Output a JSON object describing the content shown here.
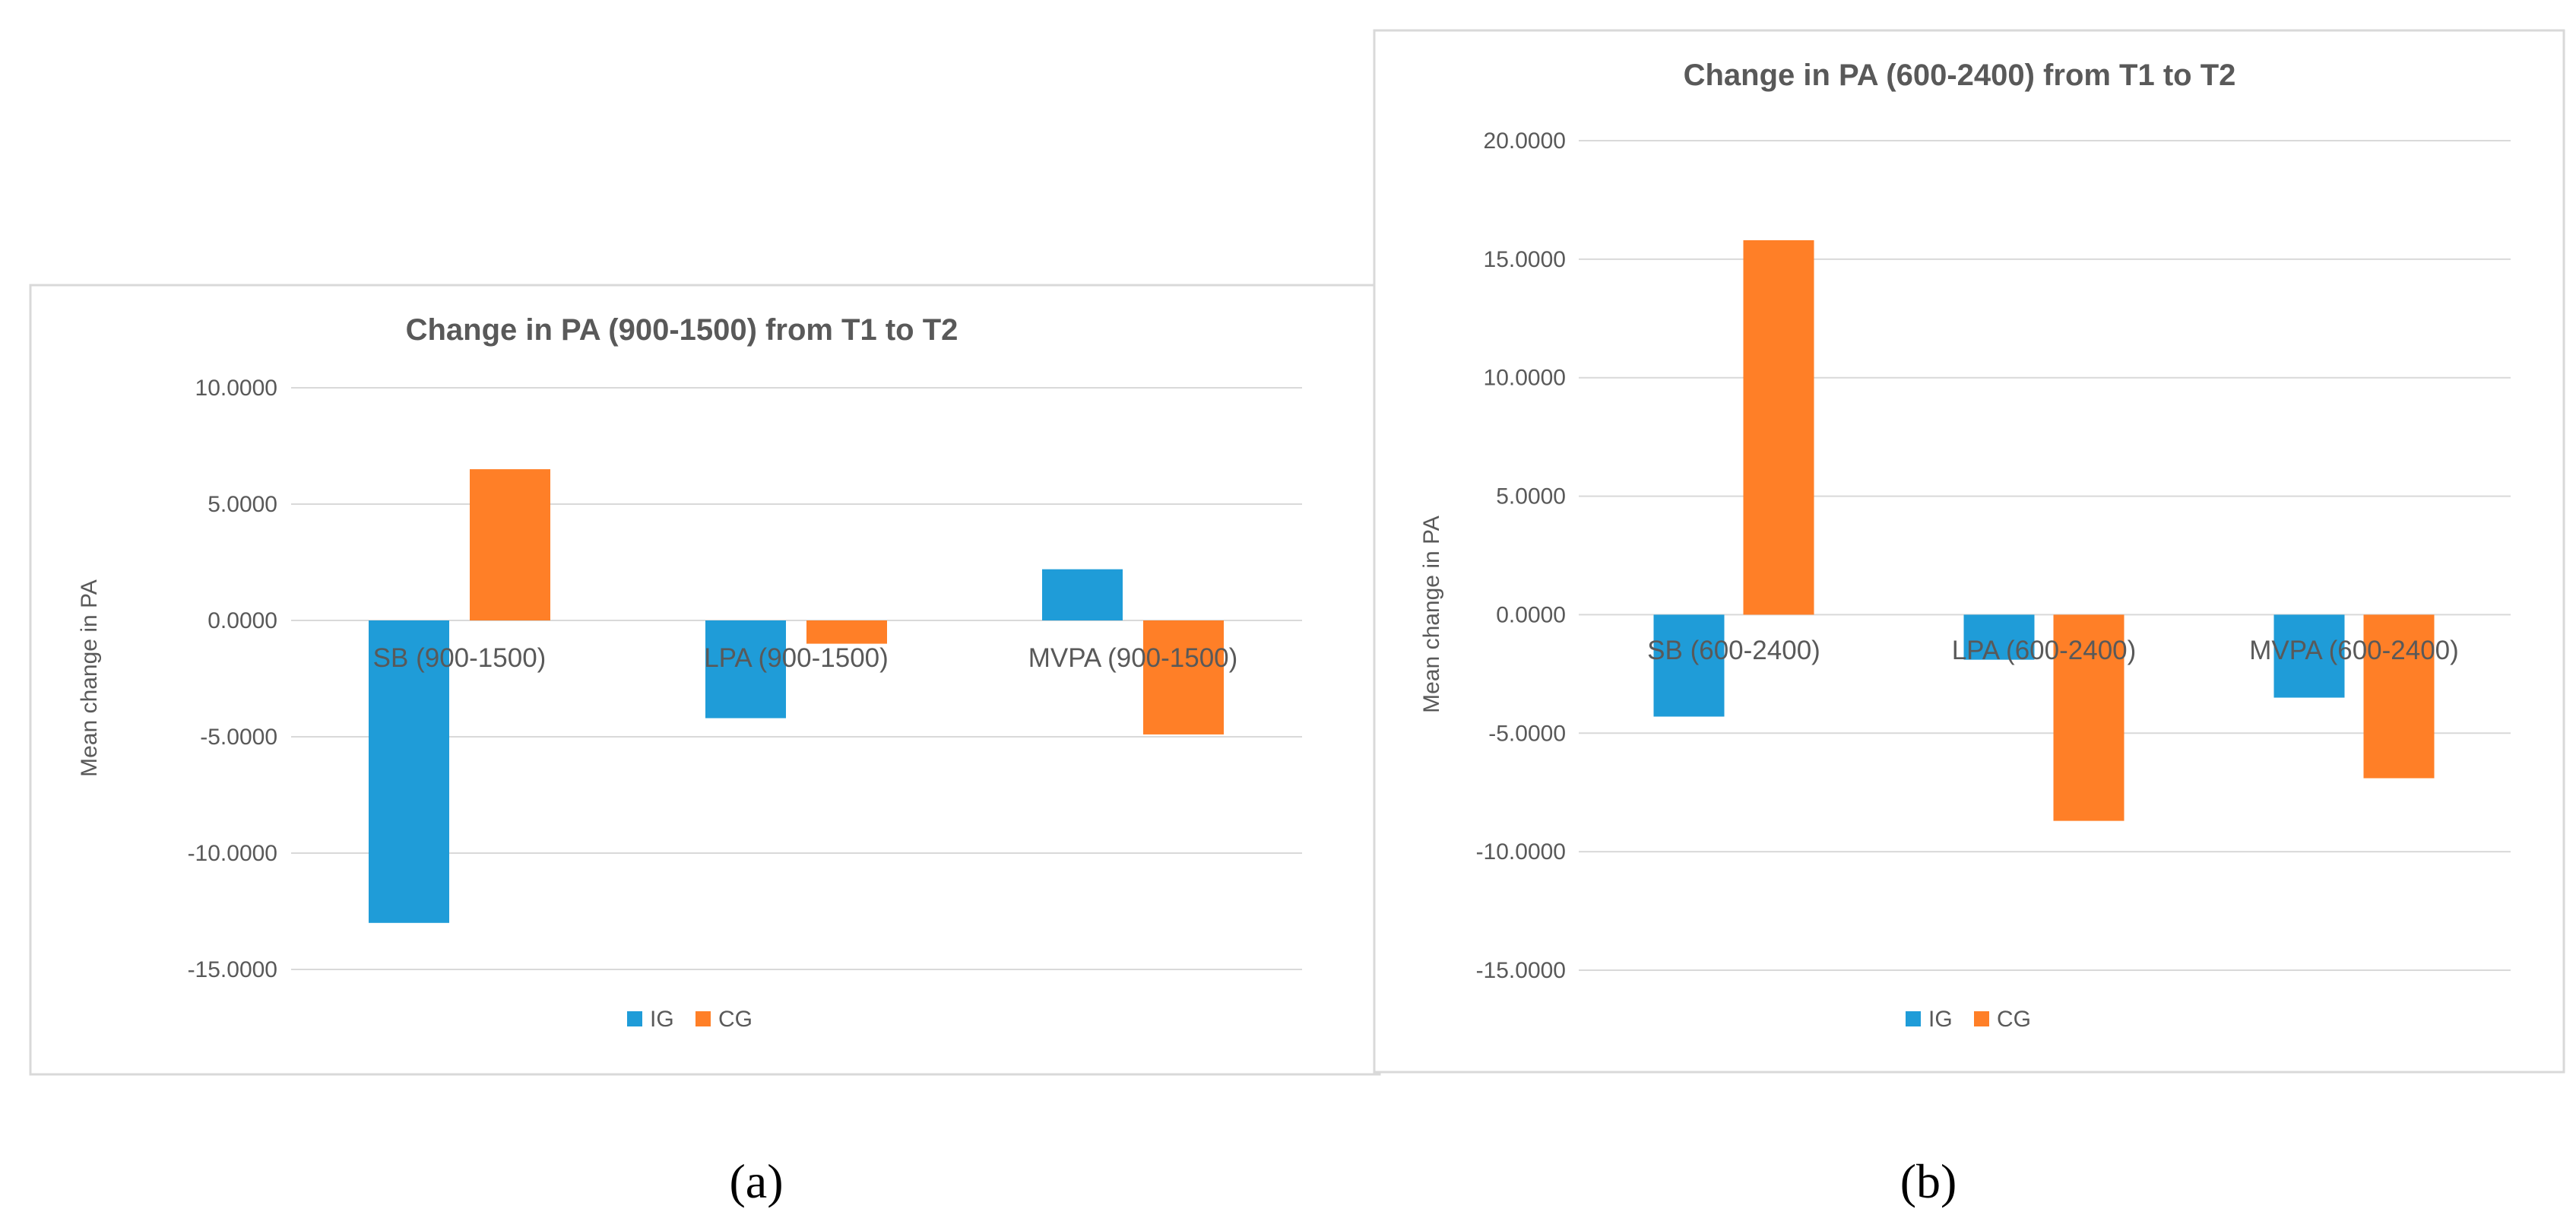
{
  "chart_data": [
    {
      "type": "bar",
      "title": "Change in PA (900-1500)  from T1 to T2",
      "ylabel": "Mean change in PA",
      "xlabel": "",
      "categories": [
        "SB (900-1500)",
        "LPA (900-1500)",
        "MVPA (900-1500)"
      ],
      "series": [
        {
          "name": "IG",
          "color": "#1f9cd8",
          "values": [
            -13.0,
            -4.2,
            2.2
          ]
        },
        {
          "name": "CG",
          "color": "#ff7f27",
          "values": [
            6.5,
            -1.0,
            -4.9
          ]
        }
      ],
      "ylim": [
        -15,
        10
      ],
      "yticks": [
        10,
        5,
        0,
        -5,
        -10,
        -15
      ],
      "yticklabels": [
        "10.0000",
        "5.0000",
        "0.0000",
        "-5.0000",
        "-10.0000",
        "-15.0000"
      ],
      "legend": "bottom",
      "caption": "(a)"
    },
    {
      "type": "bar",
      "title": "Change in PA (600-2400) from T1 to T2",
      "ylabel": "Mean change in PA",
      "xlabel": "",
      "categories": [
        "SB (600-2400)",
        "LPA (600-2400)",
        "MVPA (600-2400)"
      ],
      "series": [
        {
          "name": "IG",
          "color": "#1f9cd8",
          "values": [
            -4.3,
            -1.9,
            -3.5
          ]
        },
        {
          "name": "CG",
          "color": "#ff7f27",
          "values": [
            15.8,
            -8.7,
            -6.9
          ]
        }
      ],
      "ylim": [
        -15,
        20
      ],
      "yticks": [
        20,
        15,
        10,
        5,
        0,
        -5,
        -10,
        -15
      ],
      "yticklabels": [
        "20.0000",
        "15.0000",
        "10.0000",
        "5.0000",
        "0.0000",
        "-5.0000",
        "-10.0000",
        "-15.0000"
      ],
      "legend": "bottom",
      "caption": "(b)"
    }
  ]
}
